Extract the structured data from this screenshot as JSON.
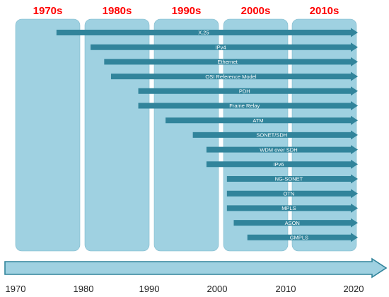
{
  "colors": {
    "decade_title": "#ff0000",
    "panel_fill": "#9fd1e1",
    "panel_stroke": "#7fb9cc",
    "bar_fill": "#31849b",
    "bar_text": "#ffffff",
    "axis_fill": "#9fd1e1",
    "axis_stroke": "#31849b",
    "year_text": "#222222"
  },
  "decades": [
    "1970s",
    "1980s",
    "1990s",
    "2000s",
    "2010s"
  ],
  "year_ticks": [
    "1970",
    "1980",
    "1990",
    "2000",
    "2010",
    "2020"
  ],
  "timeline": {
    "start_year": 1970,
    "end_year": 2020
  },
  "technologies": [
    {
      "label": "X.25",
      "start": 1976
    },
    {
      "label": "IPv4",
      "start": 1981
    },
    {
      "label": "Ethernet",
      "start": 1983
    },
    {
      "label": "OSI Reference Model",
      "start": 1984
    },
    {
      "label": "PDH",
      "start": 1988
    },
    {
      "label": "Frame Relay",
      "start": 1988
    },
    {
      "label": "ATM",
      "start": 1992
    },
    {
      "label": "SONET/SDH",
      "start": 1996
    },
    {
      "label": "WDM over SDH",
      "start": 1998
    },
    {
      "label": "IPv6",
      "start": 1998
    },
    {
      "label": "NG-SONET",
      "start": 2001
    },
    {
      "label": "OTN",
      "start": 2001
    },
    {
      "label": "MPLS",
      "start": 2001
    },
    {
      "label": "ASON",
      "start": 2002
    },
    {
      "label": "GMPLS",
      "start": 2004
    }
  ]
}
